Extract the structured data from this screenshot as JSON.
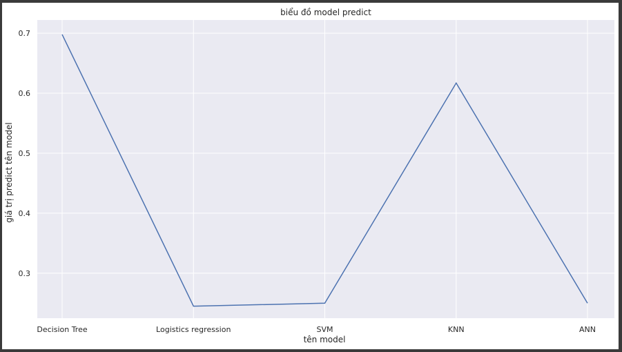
{
  "chart_data": {
    "type": "line",
    "title": "biểu đồ model predict",
    "xlabel": "tên model",
    "ylabel": "giá trị predict tên model",
    "categories": [
      "Decision Tree",
      "Logistics regression",
      "SVM",
      "KNN",
      "ANN"
    ],
    "series": [
      {
        "values": [
          0.698,
          0.245,
          0.25,
          0.617,
          0.25
        ]
      }
    ],
    "ylim": [
      0.225,
      0.722
    ],
    "yticks": [
      "0.3",
      "0.4",
      "0.5",
      "0.6",
      "0.7"
    ],
    "grid": true,
    "line_color": "#4c72b0",
    "plot_background": "#eaeaf2",
    "grid_color": "#ffffff"
  }
}
